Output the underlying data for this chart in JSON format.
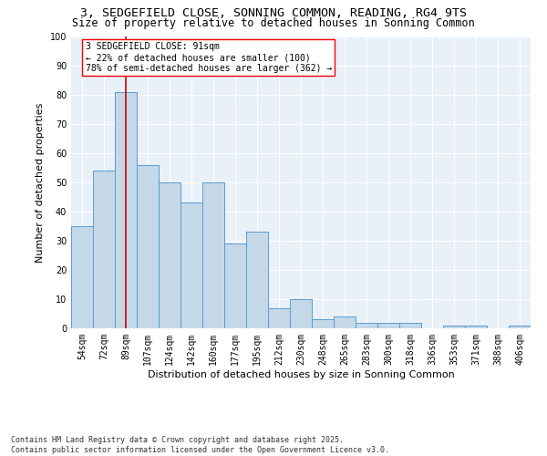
{
  "title1": "3, SEDGEFIELD CLOSE, SONNING COMMON, READING, RG4 9TS",
  "title2": "Size of property relative to detached houses in Sonning Common",
  "xlabel": "Distribution of detached houses by size in Sonning Common",
  "ylabel": "Number of detached properties",
  "categories": [
    "54sqm",
    "72sqm",
    "89sqm",
    "107sqm",
    "124sqm",
    "142sqm",
    "160sqm",
    "177sqm",
    "195sqm",
    "212sqm",
    "230sqm",
    "248sqm",
    "265sqm",
    "283sqm",
    "300sqm",
    "318sqm",
    "336sqm",
    "353sqm",
    "371sqm",
    "388sqm",
    "406sqm"
  ],
  "values": [
    35,
    54,
    81,
    56,
    50,
    43,
    50,
    29,
    33,
    7,
    10,
    3,
    4,
    2,
    2,
    2,
    0,
    1,
    1,
    0,
    1
  ],
  "bar_color": "#c5d8e8",
  "bar_edge_color": "#5b9bd5",
  "highlight_index": 2,
  "highlight_line_color": "#cc0000",
  "annotation_text": "3 SEDGEFIELD CLOSE: 91sqm\n← 22% of detached houses are smaller (100)\n78% of semi-detached houses are larger (362) →",
  "ylim": [
    0,
    100
  ],
  "yticks": [
    0,
    10,
    20,
    30,
    40,
    50,
    60,
    70,
    80,
    90,
    100
  ],
  "footer": "Contains HM Land Registry data © Crown copyright and database right 2025.\nContains public sector information licensed under the Open Government Licence v3.0.",
  "bg_color": "#e8f0f8",
  "fig_bg_color": "#ffffff",
  "title1_fontsize": 9.5,
  "title2_fontsize": 8.5,
  "axis_label_fontsize": 8,
  "tick_fontsize": 7,
  "annotation_fontsize": 7,
  "footer_fontsize": 6
}
